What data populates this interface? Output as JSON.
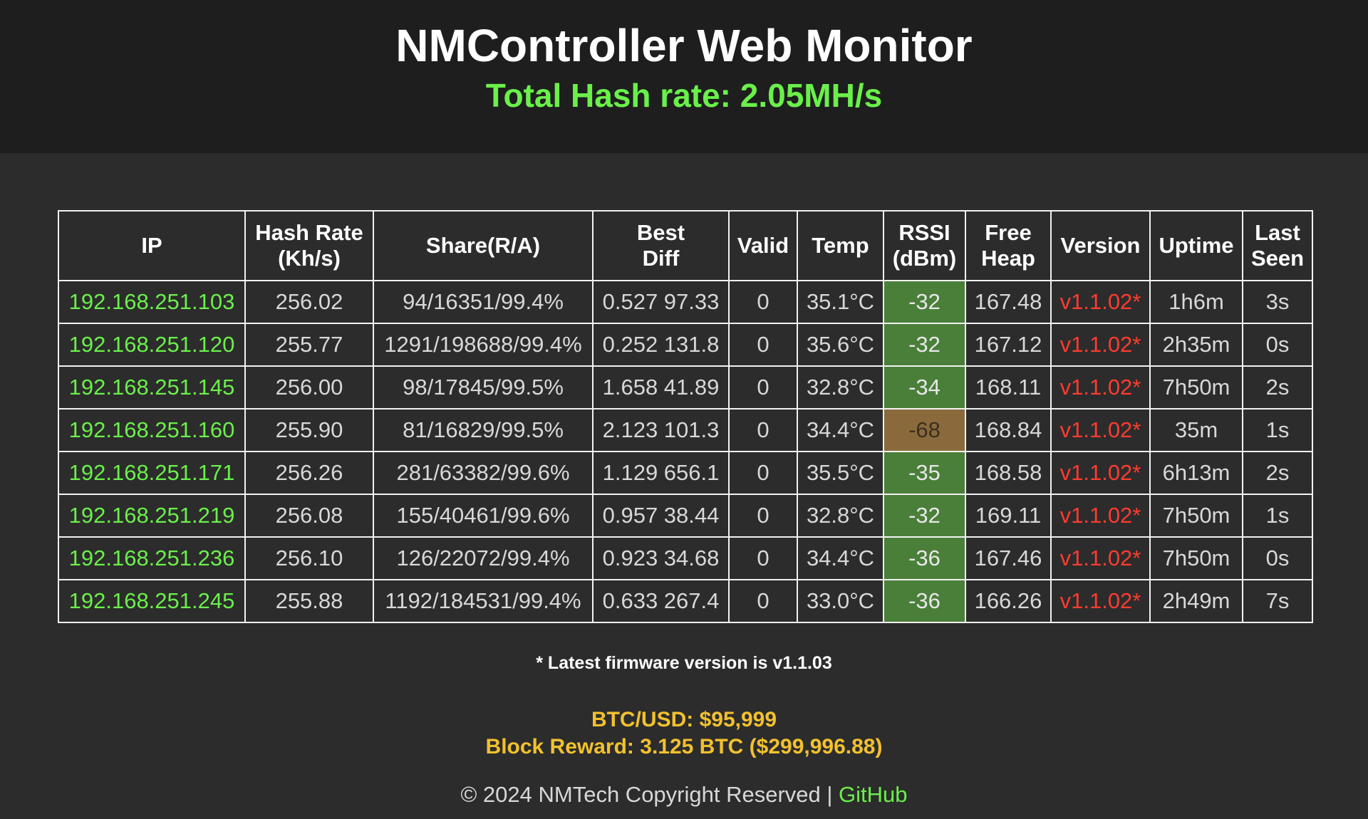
{
  "header": {
    "title": "NMController Web Monitor",
    "total_hash_rate": "Total Hash rate: 2.05MH/s"
  },
  "table": {
    "columns": [
      "IP",
      "Hash Rate (Kh/s)",
      "Share(R/A)",
      "Best Diff",
      "Valid",
      "Temp",
      "RSSI (dBm)",
      "Free Heap",
      "Version",
      "Uptime",
      "Last Seen"
    ],
    "rows": [
      {
        "ip": "192.168.251.103",
        "hash_rate": "256.02",
        "share": "94/16351/99.4%",
        "best_diff": "0.527 97.33",
        "valid": "0",
        "temp": "35.1°C",
        "rssi": "-32",
        "rssi_status": "good",
        "free_heap": "167.48",
        "version": "v1.1.02*",
        "uptime": "1h6m",
        "last_seen": "3s"
      },
      {
        "ip": "192.168.251.120",
        "hash_rate": "255.77",
        "share": "1291/198688/99.4%",
        "best_diff": "0.252 131.8",
        "valid": "0",
        "temp": "35.6°C",
        "rssi": "-32",
        "rssi_status": "good",
        "free_heap": "167.12",
        "version": "v1.1.02*",
        "uptime": "2h35m",
        "last_seen": "0s"
      },
      {
        "ip": "192.168.251.145",
        "hash_rate": "256.00",
        "share": "98/17845/99.5%",
        "best_diff": "1.658 41.89",
        "valid": "0",
        "temp": "32.8°C",
        "rssi": "-34",
        "rssi_status": "good",
        "free_heap": "168.11",
        "version": "v1.1.02*",
        "uptime": "7h50m",
        "last_seen": "2s"
      },
      {
        "ip": "192.168.251.160",
        "hash_rate": "255.90",
        "share": "81/16829/99.5%",
        "best_diff": "2.123 101.3",
        "valid": "0",
        "temp": "34.4°C",
        "rssi": "-68",
        "rssi_status": "weak",
        "free_heap": "168.84",
        "version": "v1.1.02*",
        "uptime": "35m",
        "last_seen": "1s"
      },
      {
        "ip": "192.168.251.171",
        "hash_rate": "256.26",
        "share": "281/63382/99.6%",
        "best_diff": "1.129 656.1",
        "valid": "0",
        "temp": "35.5°C",
        "rssi": "-35",
        "rssi_status": "good",
        "free_heap": "168.58",
        "version": "v1.1.02*",
        "uptime": "6h13m",
        "last_seen": "2s"
      },
      {
        "ip": "192.168.251.219",
        "hash_rate": "256.08",
        "share": "155/40461/99.6%",
        "best_diff": "0.957 38.44",
        "valid": "0",
        "temp": "32.8°C",
        "rssi": "-32",
        "rssi_status": "good",
        "free_heap": "169.11",
        "version": "v1.1.02*",
        "uptime": "7h50m",
        "last_seen": "1s"
      },
      {
        "ip": "192.168.251.236",
        "hash_rate": "256.10",
        "share": "126/22072/99.4%",
        "best_diff": "0.923 34.68",
        "valid": "0",
        "temp": "34.4°C",
        "rssi": "-36",
        "rssi_status": "good",
        "free_heap": "167.46",
        "version": "v1.1.02*",
        "uptime": "7h50m",
        "last_seen": "0s"
      },
      {
        "ip": "192.168.251.245",
        "hash_rate": "255.88",
        "share": "1192/184531/99.4%",
        "best_diff": "0.633 267.4",
        "valid": "0",
        "temp": "33.0°C",
        "rssi": "-36",
        "rssi_status": "good",
        "free_heap": "166.26",
        "version": "v1.1.02*",
        "uptime": "2h49m",
        "last_seen": "7s"
      }
    ]
  },
  "firmware_note": "* Latest firmware version is v1.1.03",
  "btc": {
    "price": "BTC/USD: $95,999",
    "block_reward": "Block Reward: 3.125 BTC ($299,996.88)"
  },
  "footer": {
    "copyright": "© 2024 NMTech Copyright Reserved | ",
    "link_label": "GitHub"
  },
  "colors": {
    "accent_green": "#6af04a",
    "version_red": "#ff3b30",
    "btc_gold": "#f2c12e",
    "rssi_good_bg": "#4a7f3a",
    "rssi_weak_bg": "#8a6a3c"
  }
}
